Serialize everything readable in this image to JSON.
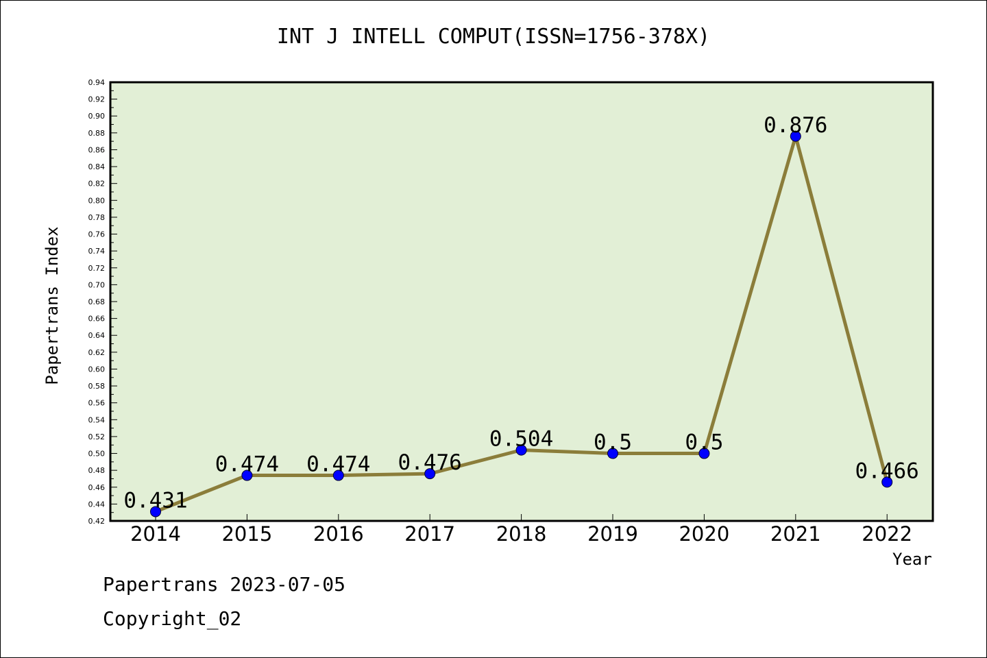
{
  "chart_data": {
    "type": "line",
    "title": "INT J INTELL COMPUT(ISSN=1756-378X)",
    "xlabel": "Year",
    "ylabel": "Papertrans Index",
    "categories": [
      "2014",
      "2015",
      "2016",
      "2017",
      "2018",
      "2019",
      "2020",
      "2021",
      "2022"
    ],
    "series": [
      {
        "values": [
          0.431,
          0.474,
          0.474,
          0.476,
          0.504,
          0.5,
          0.5,
          0.876,
          0.466
        ],
        "data_labels": [
          "0.431",
          "0.474",
          "0.474",
          "0.476",
          "0.504",
          "0.5",
          "0.5",
          "0.876",
          "0.466"
        ]
      }
    ],
    "ylim": [
      0.42,
      0.94
    ],
    "y_ticks": [
      "0.42",
      "0.44",
      "0.46",
      "0.48",
      "0.50",
      "0.52",
      "0.54",
      "0.56",
      "0.58",
      "0.60",
      "0.62",
      "0.64",
      "0.66",
      "0.68",
      "0.70",
      "0.72",
      "0.74",
      "0.76",
      "0.78",
      "0.80",
      "0.82",
      "0.84",
      "0.86",
      "0.88",
      "0.90",
      "0.92",
      "0.94"
    ],
    "grid": false,
    "legend": "none",
    "colors": {
      "plot_background": "#e2efd6",
      "line": "#8b7d3a",
      "marker": "#0000ff"
    }
  },
  "footer": {
    "date_text": "Papertrans 2023-07-05",
    "copyright_text": "Copyright_02"
  }
}
